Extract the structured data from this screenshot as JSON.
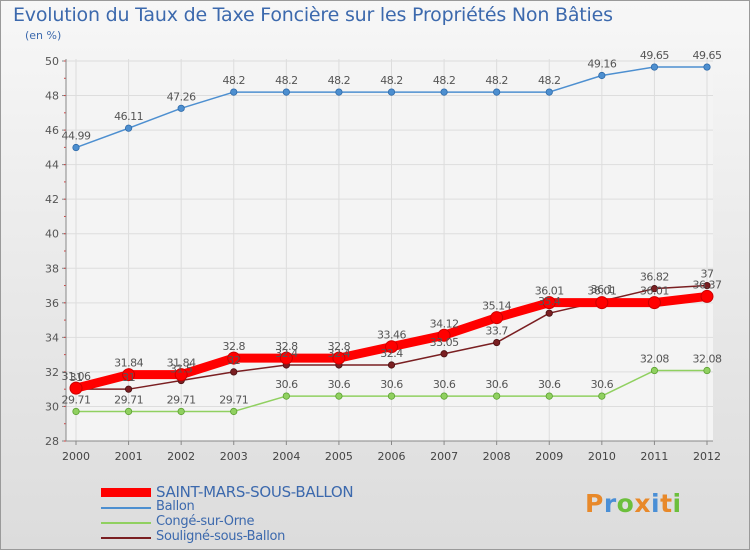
{
  "title": "Evolution du Taux de Taxe Foncière sur les Propriétés Non Bâties",
  "unit": "(en %)",
  "brand": {
    "letters": [
      "P",
      "r",
      "o",
      "x",
      "i",
      "t",
      "i"
    ],
    "colors": [
      "#e8892a",
      "#4a8fd6",
      "#6cbf3c",
      "#e8892a",
      "#4a8fd6",
      "#e8892a",
      "#6cbf3c"
    ]
  },
  "chart_data": {
    "type": "line",
    "x": [
      "2000",
      "2001",
      "2002",
      "2003",
      "2004",
      "2005",
      "2006",
      "2007",
      "2008",
      "2009",
      "2010",
      "2011",
      "2012"
    ],
    "ylim": [
      28,
      50
    ],
    "yticks": [
      "28",
      "30",
      "32",
      "34",
      "36",
      "38",
      "40",
      "42",
      "44",
      "46",
      "48",
      "50"
    ],
    "grid": true,
    "legend_position": "bottom-left",
    "series": [
      {
        "name": "SAINT-MARS-SOUS-BALLON",
        "color": "#ff0000",
        "values": [
          31.06,
          31.84,
          31.84,
          32.8,
          32.8,
          32.8,
          33.46,
          34.12,
          35.14,
          36.01,
          36.01,
          36.01,
          36.37
        ],
        "labels": [
          "31.06",
          "31.84",
          "31.84",
          "32.8",
          "32.8",
          "32.8",
          "33.46",
          "34.12",
          "35.14",
          "36.01",
          "36.01",
          "36.01",
          "36.37"
        ]
      },
      {
        "name": "Ballon",
        "color": "#4d8fd0",
        "values": [
          44.99,
          46.11,
          47.26,
          48.2,
          48.2,
          48.2,
          48.2,
          48.2,
          48.2,
          48.2,
          49.16,
          49.65,
          49.65
        ],
        "labels": [
          "44.99",
          "46.11",
          "47.26",
          "48.2",
          "48.2",
          "48.2",
          "48.2",
          "48.2",
          "48.2",
          "48.2",
          "49.16",
          "49.65",
          "49.65"
        ]
      },
      {
        "name": "Congé-sur-Orne",
        "color": "#90d060",
        "values": [
          29.71,
          29.71,
          29.71,
          29.71,
          30.6,
          30.6,
          30.6,
          30.6,
          30.6,
          30.6,
          30.6,
          32.08,
          32.08
        ],
        "labels": [
          "29.71",
          "29.71",
          "29.71",
          "29.71",
          "30.6",
          "30.6",
          "30.6",
          "30.6",
          "30.6",
          "30.6",
          "30.6",
          "32.08",
          "32.08"
        ]
      },
      {
        "name": "Souligné-sous-Ballon",
        "color": "#7a1f22",
        "values": [
          31,
          31,
          31.5,
          32,
          32.4,
          32.4,
          32.4,
          33.05,
          33.7,
          35.4,
          36.1,
          36.82,
          37
        ],
        "labels": [
          "31",
          "31",
          "31.5",
          "32",
          "32.4",
          "32.4",
          "32.4",
          "33.05",
          "33.7",
          "35.4",
          "36.1",
          "36.82",
          "37"
        ]
      }
    ]
  }
}
